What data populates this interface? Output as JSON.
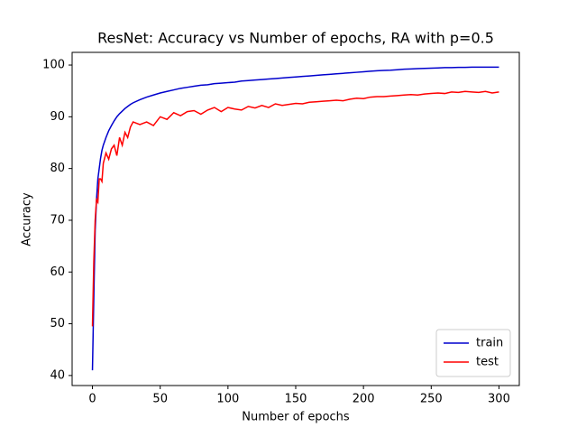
{
  "chart_data": {
    "type": "line",
    "title": "ResNet: Accuracy vs Number of epochs, RA with p=0.5",
    "xlabel": "Number of epochs",
    "ylabel": "Accuracy",
    "x": [
      0,
      1,
      2,
      3,
      4,
      5,
      6,
      7,
      8,
      10,
      12,
      14,
      16,
      18,
      20,
      22,
      24,
      26,
      28,
      30,
      35,
      40,
      45,
      50,
      55,
      60,
      65,
      70,
      75,
      80,
      85,
      90,
      95,
      100,
      105,
      110,
      115,
      120,
      125,
      130,
      135,
      140,
      145,
      150,
      155,
      160,
      165,
      170,
      175,
      180,
      185,
      190,
      195,
      200,
      205,
      210,
      215,
      220,
      225,
      230,
      235,
      240,
      245,
      250,
      255,
      260,
      265,
      270,
      275,
      280,
      285,
      290,
      295,
      300
    ],
    "series": [
      {
        "name": "train",
        "color": "#0000cd",
        "values": [
          41,
          55,
          68,
          74,
          78,
          80,
          82,
          83.5,
          84.5,
          86,
          87.3,
          88.3,
          89.2,
          90,
          90.6,
          91.1,
          91.6,
          92,
          92.4,
          92.7,
          93.3,
          93.8,
          94.2,
          94.6,
          94.9,
          95.2,
          95.5,
          95.7,
          95.9,
          96.1,
          96.2,
          96.4,
          96.5,
          96.6,
          96.7,
          96.9,
          97,
          97.1,
          97.2,
          97.3,
          97.4,
          97.5,
          97.6,
          97.7,
          97.8,
          97.9,
          98,
          98.1,
          98.2,
          98.3,
          98.4,
          98.5,
          98.6,
          98.7,
          98.8,
          98.9,
          98.95,
          99,
          99.1,
          99.2,
          99.25,
          99.3,
          99.35,
          99.4,
          99.45,
          99.5,
          99.5,
          99.55,
          99.55,
          99.6,
          99.6,
          99.6,
          99.6,
          99.6
        ]
      },
      {
        "name": "test",
        "color": "#ff0000",
        "values": [
          49.5,
          62,
          70,
          74,
          73.5,
          78,
          78,
          77.5,
          81,
          83,
          81.8,
          83.8,
          84.5,
          82.5,
          86,
          84.5,
          87,
          86,
          88,
          89,
          88.5,
          89,
          88.3,
          90,
          89.5,
          90.8,
          90.2,
          91,
          91.2,
          90.5,
          91.3,
          91.8,
          91,
          91.8,
          91.5,
          91.3,
          92,
          91.7,
          92.2,
          91.8,
          92.5,
          92.2,
          92.4,
          92.6,
          92.5,
          92.8,
          92.9,
          93,
          93.1,
          93.2,
          93.1,
          93.4,
          93.6,
          93.5,
          93.8,
          93.9,
          93.9,
          94,
          94.1,
          94.2,
          94.3,
          94.2,
          94.4,
          94.5,
          94.6,
          94.5,
          94.8,
          94.7,
          94.9,
          94.8,
          94.7,
          94.9,
          94.6,
          94.8
        ]
      }
    ],
    "xlim": [
      -15,
      315
    ],
    "ylim": [
      38.06,
      102.45
    ],
    "xticks": [
      0,
      50,
      100,
      150,
      200,
      250,
      300
    ],
    "yticks": [
      40,
      50,
      60,
      70,
      80,
      90,
      100
    ],
    "legend": "lower right",
    "grid": false
  }
}
